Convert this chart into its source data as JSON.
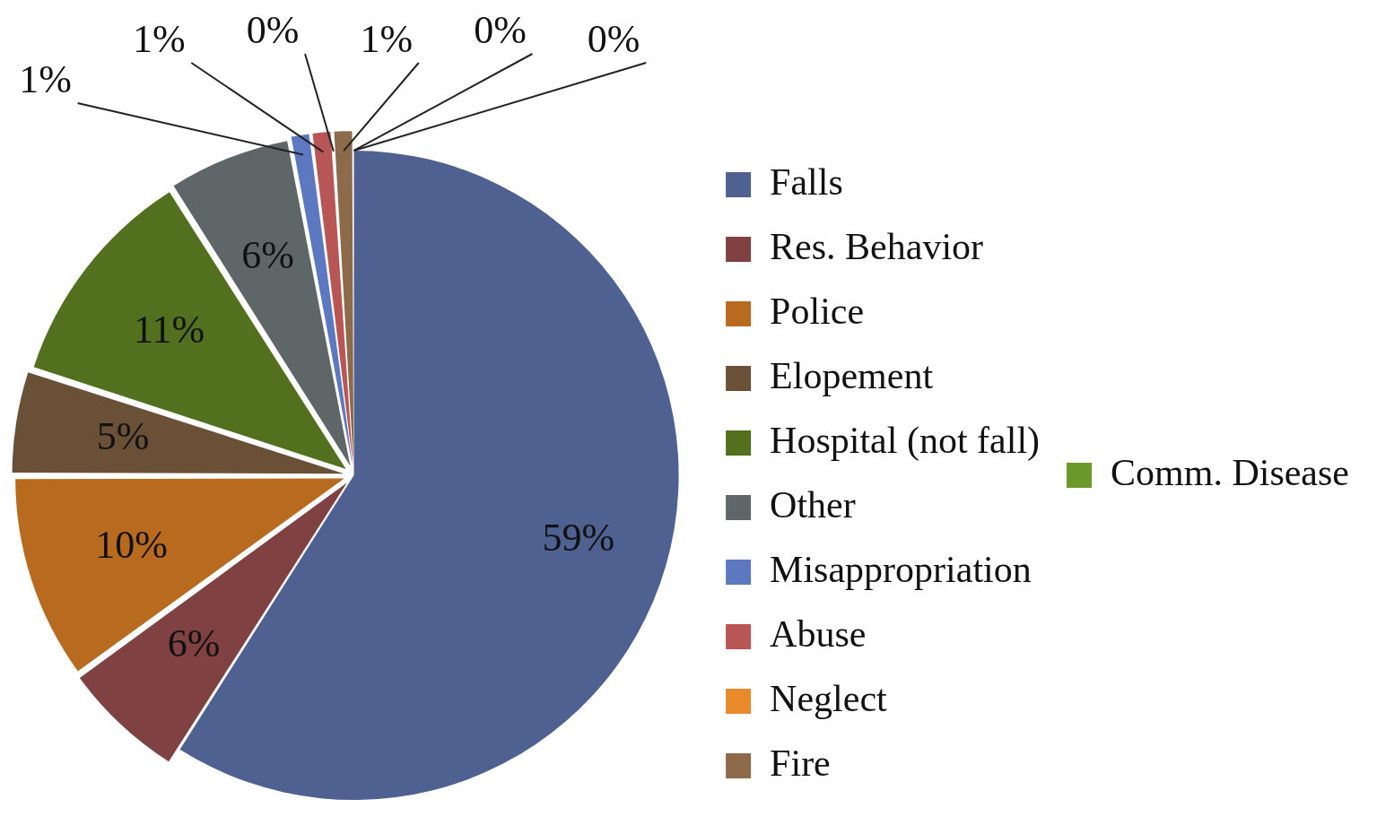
{
  "chart_data": {
    "type": "pie",
    "categories": [
      "Falls",
      "Res. Behavior",
      "Police",
      "Elopement",
      "Hospital (not fall)",
      "Other",
      "Misappropriation",
      "Abuse",
      "Neglect",
      "Fire",
      "Comm. Disease",
      null
    ],
    "values": [
      59,
      6,
      10,
      5,
      11,
      6,
      1,
      1,
      0,
      1,
      0,
      0
    ],
    "value_labels": [
      "59%",
      "6%",
      "10%",
      "5%",
      "11%",
      "6%",
      "1%",
      "1%",
      "0%",
      "1%",
      "0%",
      "0%"
    ],
    "colors": [
      "#4f6191",
      "#7f4141",
      "#b86b1f",
      "#6b5038",
      "#52701e",
      "#5f6668",
      "#5b78c0",
      "#b85555",
      "#e8892a",
      "#8c6a4a",
      "#6b9a2a",
      "#7f8c8d"
    ],
    "legend": "right"
  }
}
